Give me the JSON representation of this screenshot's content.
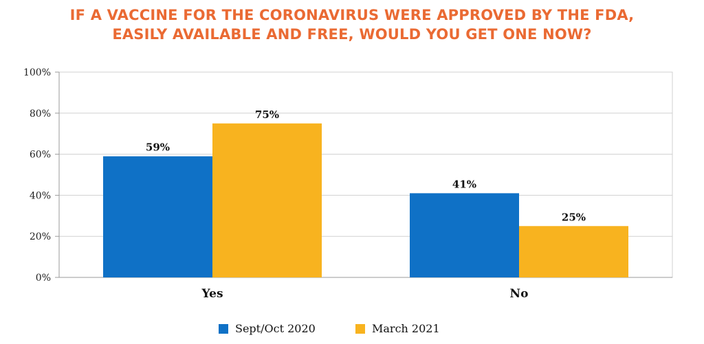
{
  "colors": {
    "title": "#ea6a33",
    "series1": "#0f71c6",
    "series2": "#f8b31f",
    "grid": "#d0d0d0",
    "axis": "#9a9a9a"
  },
  "chart_data": {
    "type": "bar",
    "title_lines": [
      "IF A VACCINE FOR THE CORONAVIRUS WERE APPROVED BY THE FDA,",
      "EASILY AVAILABLE AND FREE, WOULD YOU GET ONE NOW?"
    ],
    "categories": [
      "Yes",
      "No"
    ],
    "series": [
      {
        "name": "Sept/Oct 2020",
        "values": [
          59,
          41
        ],
        "labels": [
          "59%",
          "41%"
        ]
      },
      {
        "name": "March 2021",
        "values": [
          75,
          25
        ],
        "labels": [
          "75%",
          "25%"
        ]
      }
    ],
    "ylim": [
      0,
      100
    ],
    "yticks": [
      {
        "value": 0,
        "label": "0%"
      },
      {
        "value": 20,
        "label": "20%"
      },
      {
        "value": 40,
        "label": "40%"
      },
      {
        "value": 60,
        "label": "60%"
      },
      {
        "value": 80,
        "label": "80%"
      },
      {
        "value": 100,
        "label": "100%"
      }
    ],
    "grid": true,
    "legend_position": "bottom-center"
  }
}
